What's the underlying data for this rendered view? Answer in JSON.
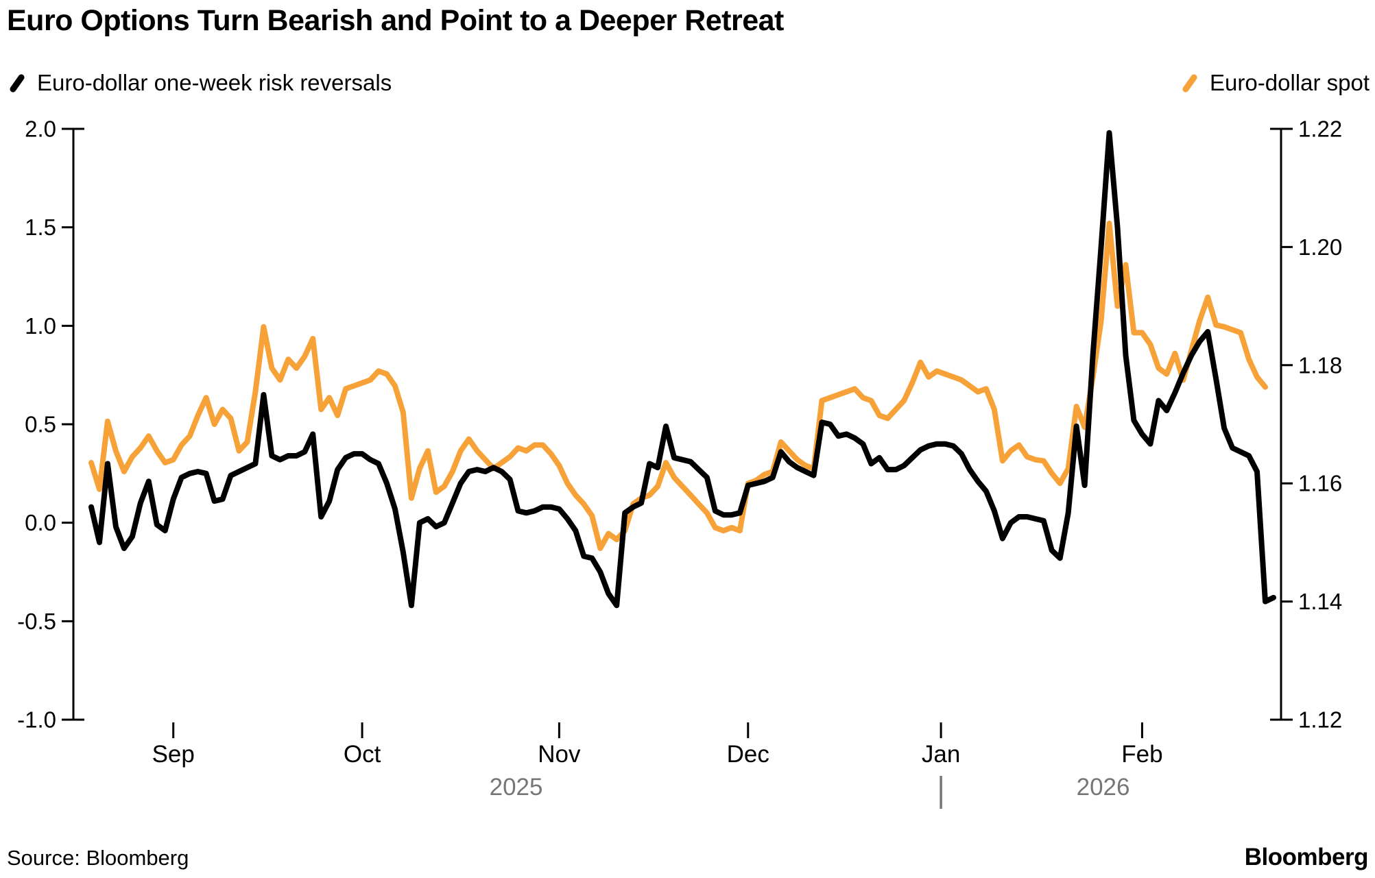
{
  "title": "Euro Options Turn Bearish and Point to a Deeper Retreat",
  "legend": [
    {
      "label": "Euro-dollar one-week risk reversals",
      "color": "#000000"
    },
    {
      "label": "Euro-dollar spot",
      "color": "#F7A238"
    }
  ],
  "source": "Source: Bloomberg",
  "brand": "Bloomberg",
  "colors": {
    "black_series": "#000000",
    "orange_series": "#F7A238",
    "year_gray": "#767676"
  },
  "chart_data": {
    "type": "line",
    "title": "Euro Options Turn Bearish and Point to a Deeper Retreat",
    "grid": false,
    "legend_position": "top",
    "left_axis": {
      "label": "Euro-dollar one-week risk reversals",
      "range": [
        -1.0,
        2.0
      ],
      "ticks": [
        2.0,
        1.5,
        1.0,
        0.5,
        0.0,
        -0.5,
        -1.0
      ],
      "tick_labels": [
        "2.0",
        "1.5",
        "1.0",
        "0.5",
        "0.0",
        "-0.5",
        "-1.0"
      ]
    },
    "right_axis": {
      "label": "Euro-dollar spot",
      "range": [
        1.12,
        1.22
      ],
      "ticks": [
        1.22,
        1.2,
        1.18,
        1.16,
        1.14,
        1.12
      ],
      "tick_labels": [
        "1.22",
        "1.20",
        "1.18",
        "1.16",
        "1.14",
        "1.12"
      ]
    },
    "x_axis": {
      "month_ticks": [
        {
          "label": "Sep",
          "index": 10
        },
        {
          "label": "Oct",
          "index": 33
        },
        {
          "label": "Nov",
          "index": 57
        },
        {
          "label": "Dec",
          "index": 80
        },
        {
          "label": "Jan",
          "index": 103.5
        },
        {
          "label": "Feb",
          "index": 128
        }
      ],
      "year_labels": [
        "2025",
        "2026"
      ],
      "year_divider_index": 103.5
    },
    "series": [
      {
        "name": "Euro-dollar spot",
        "axis": "right",
        "color": "#F7A238",
        "values": [
          1.1635,
          1.159,
          1.1705,
          1.1655,
          1.162,
          1.1645,
          1.166,
          1.168,
          1.1655,
          1.1635,
          1.164,
          1.1665,
          1.168,
          1.1715,
          1.1745,
          1.17,
          1.1725,
          1.171,
          1.1655,
          1.167,
          1.1755,
          1.1865,
          1.1795,
          1.1775,
          1.181,
          1.1795,
          1.1815,
          1.1845,
          1.1725,
          1.1745,
          1.1715,
          1.176,
          1.1765,
          1.177,
          1.1775,
          1.179,
          1.1785,
          1.1765,
          1.172,
          1.1575,
          1.1625,
          1.1655,
          1.1585,
          1.1595,
          1.162,
          1.1655,
          1.1675,
          1.1655,
          1.164,
          1.1625,
          1.1635,
          1.1645,
          1.166,
          1.1655,
          1.1665,
          1.1665,
          1.165,
          1.163,
          1.16,
          1.158,
          1.1565,
          1.1545,
          1.149,
          1.1515,
          1.1505,
          1.152,
          1.1565,
          1.1575,
          1.158,
          1.1595,
          1.1635,
          1.161,
          1.1595,
          1.158,
          1.1565,
          1.155,
          1.1525,
          1.152,
          1.1525,
          1.152,
          1.16,
          1.1605,
          1.1615,
          1.162,
          1.167,
          1.1655,
          1.164,
          1.163,
          1.1625,
          1.174,
          1.1745,
          1.175,
          1.1755,
          1.176,
          1.1745,
          1.174,
          1.1715,
          1.171,
          1.1725,
          1.174,
          1.177,
          1.1805,
          1.178,
          1.179,
          1.1785,
          1.178,
          1.1775,
          1.1765,
          1.1755,
          1.176,
          1.1725,
          1.1638,
          1.1655,
          1.1665,
          1.1645,
          1.164,
          1.1638,
          1.1617,
          1.16,
          1.1625,
          1.173,
          1.1695,
          1.178,
          1.1875,
          1.204,
          1.19,
          1.197,
          1.1855,
          1.1855,
          1.1835,
          1.1795,
          1.1785,
          1.182,
          1.1775,
          1.1825,
          1.1875,
          1.1915,
          1.1868,
          1.1865,
          1.186,
          1.1855,
          1.181,
          1.178,
          1.1763
        ]
      },
      {
        "name": "Euro-dollar one-week risk reversals",
        "axis": "left",
        "color": "#000000",
        "values": [
          0.08,
          -0.1,
          0.3,
          -0.02,
          -0.13,
          -0.07,
          0.1,
          0.21,
          -0.01,
          -0.04,
          0.12,
          0.23,
          0.25,
          0.26,
          0.25,
          0.11,
          0.12,
          0.24,
          0.26,
          0.28,
          0.3,
          0.65,
          0.34,
          0.32,
          0.34,
          0.34,
          0.36,
          0.45,
          0.03,
          0.11,
          0.27,
          0.33,
          0.35,
          0.35,
          0.32,
          0.3,
          0.2,
          0.07,
          -0.15,
          -0.42,
          0,
          0.02,
          -0.02,
          0,
          0.1,
          0.2,
          0.26,
          0.27,
          0.26,
          0.28,
          0.26,
          0.22,
          0.06,
          0.05,
          0.06,
          0.08,
          0.08,
          0.07,
          0.02,
          -0.04,
          -0.17,
          -0.18,
          -0.25,
          -0.36,
          -0.42,
          0.05,
          0.08,
          0.1,
          0.3,
          0.28,
          0.49,
          0.33,
          0.32,
          0.31,
          0.27,
          0.23,
          0.06,
          0.04,
          0.04,
          0.05,
          0.19,
          0.2,
          0.21,
          0.23,
          0.36,
          0.31,
          0.28,
          0.26,
          0.24,
          0.51,
          0.5,
          0.44,
          0.45,
          0.43,
          0.4,
          0.3,
          0.33,
          0.27,
          0.27,
          0.29,
          0.33,
          0.37,
          0.39,
          0.4,
          0.4,
          0.39,
          0.35,
          0.27,
          0.21,
          0.16,
          0.06,
          -0.08,
          0,
          0.03,
          0.03,
          0.02,
          0.01,
          -0.14,
          -0.18,
          0.05,
          0.49,
          0.19,
          0.85,
          1.4,
          1.98,
          1.5,
          0.85,
          0.52,
          0.45,
          0.4,
          0.62,
          0.57,
          0.66,
          0.76,
          0.85,
          0.92,
          0.97,
          0.73,
          0.48,
          0.38,
          0.36,
          0.34,
          0.26,
          -0.4,
          -0.38
        ]
      }
    ]
  }
}
